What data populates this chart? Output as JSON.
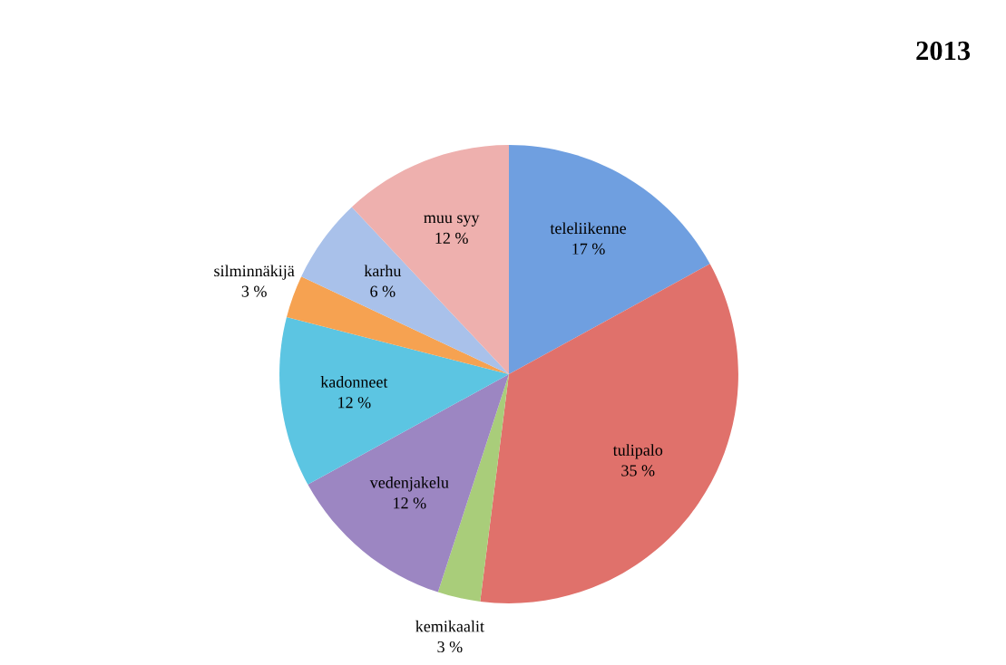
{
  "chart_data": {
    "type": "pie",
    "title": "2013",
    "categories": [
      "teleliikenne",
      "tulipalo",
      "kemikaalit",
      "vedenjakelu",
      "kadonneet",
      "silminnäkijä",
      "karhu",
      "muu syy"
    ],
    "values": [
      17,
      35,
      3,
      12,
      12,
      3,
      6,
      12
    ],
    "value_labels": [
      "17 %",
      "35 %",
      "3 %",
      "12 %",
      "12 %",
      "3 %",
      "6 %",
      "12 %"
    ],
    "colors": [
      "#6f9fe0",
      "#e0716b",
      "#a9cd7a",
      "#9c86c2",
      "#5cc5e2",
      "#f6a251",
      "#a9c1ea",
      "#eeb0ae"
    ]
  }
}
